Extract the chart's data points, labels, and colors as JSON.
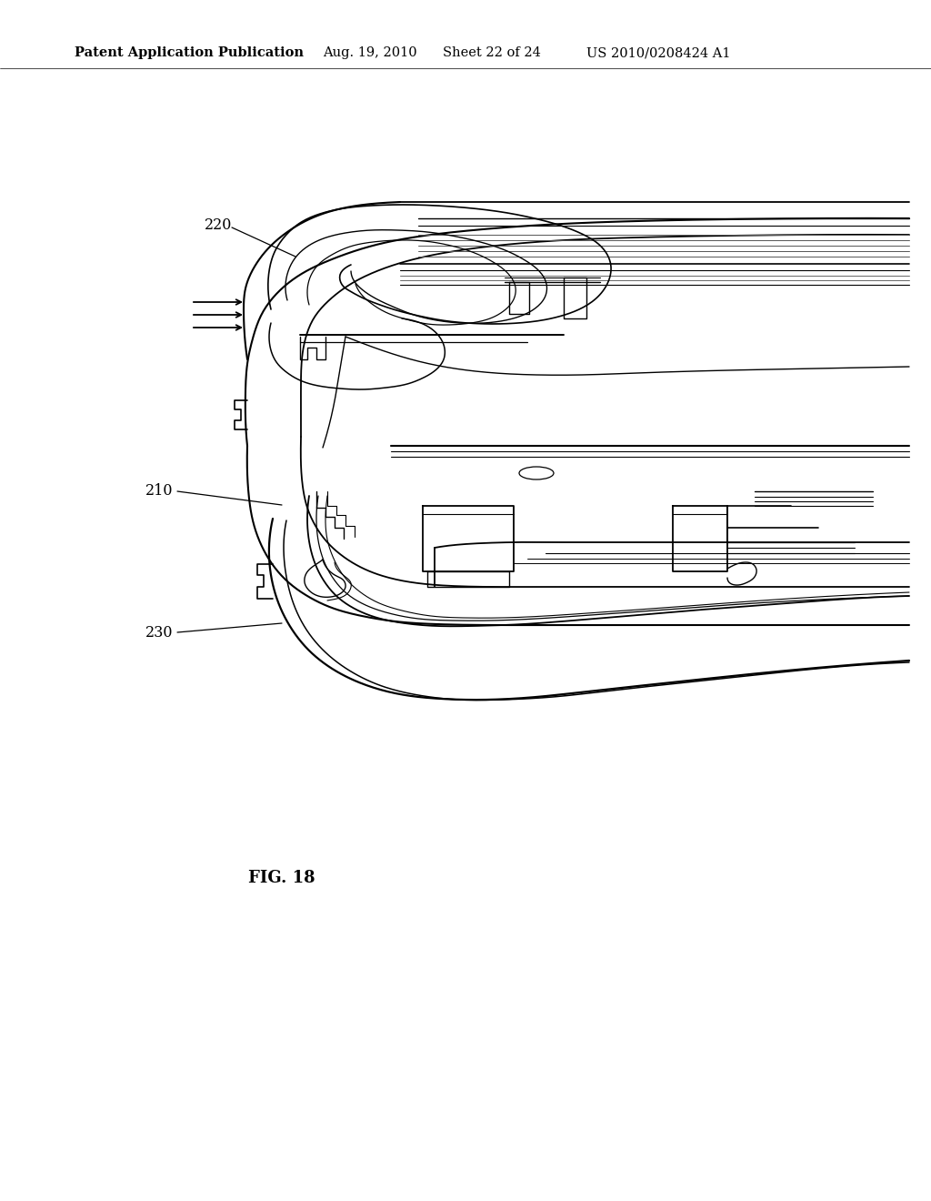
{
  "title": "Patent Application Publication",
  "date": "Aug. 19, 2010",
  "sheet": "Sheet 22 of 24",
  "patent_num": "US 2010/0208424 A1",
  "fig_label": "FIG. 18",
  "bg_color": "#ffffff",
  "line_color": "#000000",
  "header_fontsize": 10.5,
  "label_fontsize": 11.5,
  "fig_label_fontsize": 13
}
